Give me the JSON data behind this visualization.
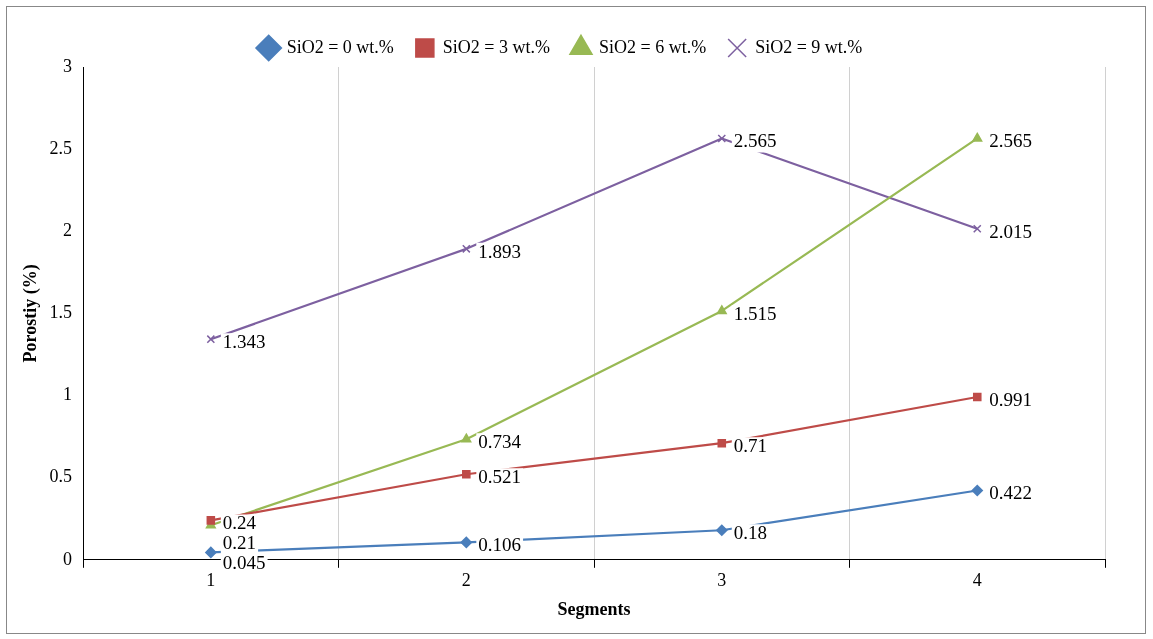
{
  "chart_data": {
    "type": "line",
    "xlabel": "Segments",
    "ylabel": "Porostiy (%)",
    "categories": [
      "1",
      "2",
      "3",
      "4"
    ],
    "series": [
      {
        "name": "SiO2 = 0 wt.%",
        "color": "#4a7ebb",
        "marker": "diamond",
        "values": [
          0.045,
          0.106,
          0.18,
          0.422
        ]
      },
      {
        "name": "SiO2 = 3 wt.%",
        "color": "#be4b48",
        "marker": "square",
        "values": [
          0.24,
          0.521,
          0.71,
          0.991
        ]
      },
      {
        "name": "SiO2 = 6 wt.%",
        "color": "#98b954",
        "marker": "triangle",
        "values": [
          0.21,
          0.734,
          1.515,
          2.565
        ]
      },
      {
        "name": "SiO2 = 9 wt.%",
        "color": "#7d60a0",
        "marker": "cross",
        "values": [
          1.343,
          1.893,
          2.565,
          2.015
        ]
      }
    ],
    "ylim": [
      0,
      3
    ],
    "yticks": [
      0,
      0.5,
      1,
      1.5,
      2,
      2.5,
      3
    ],
    "grid": "x",
    "legend": "top",
    "data_labels": true,
    "line_style": "solid"
  }
}
